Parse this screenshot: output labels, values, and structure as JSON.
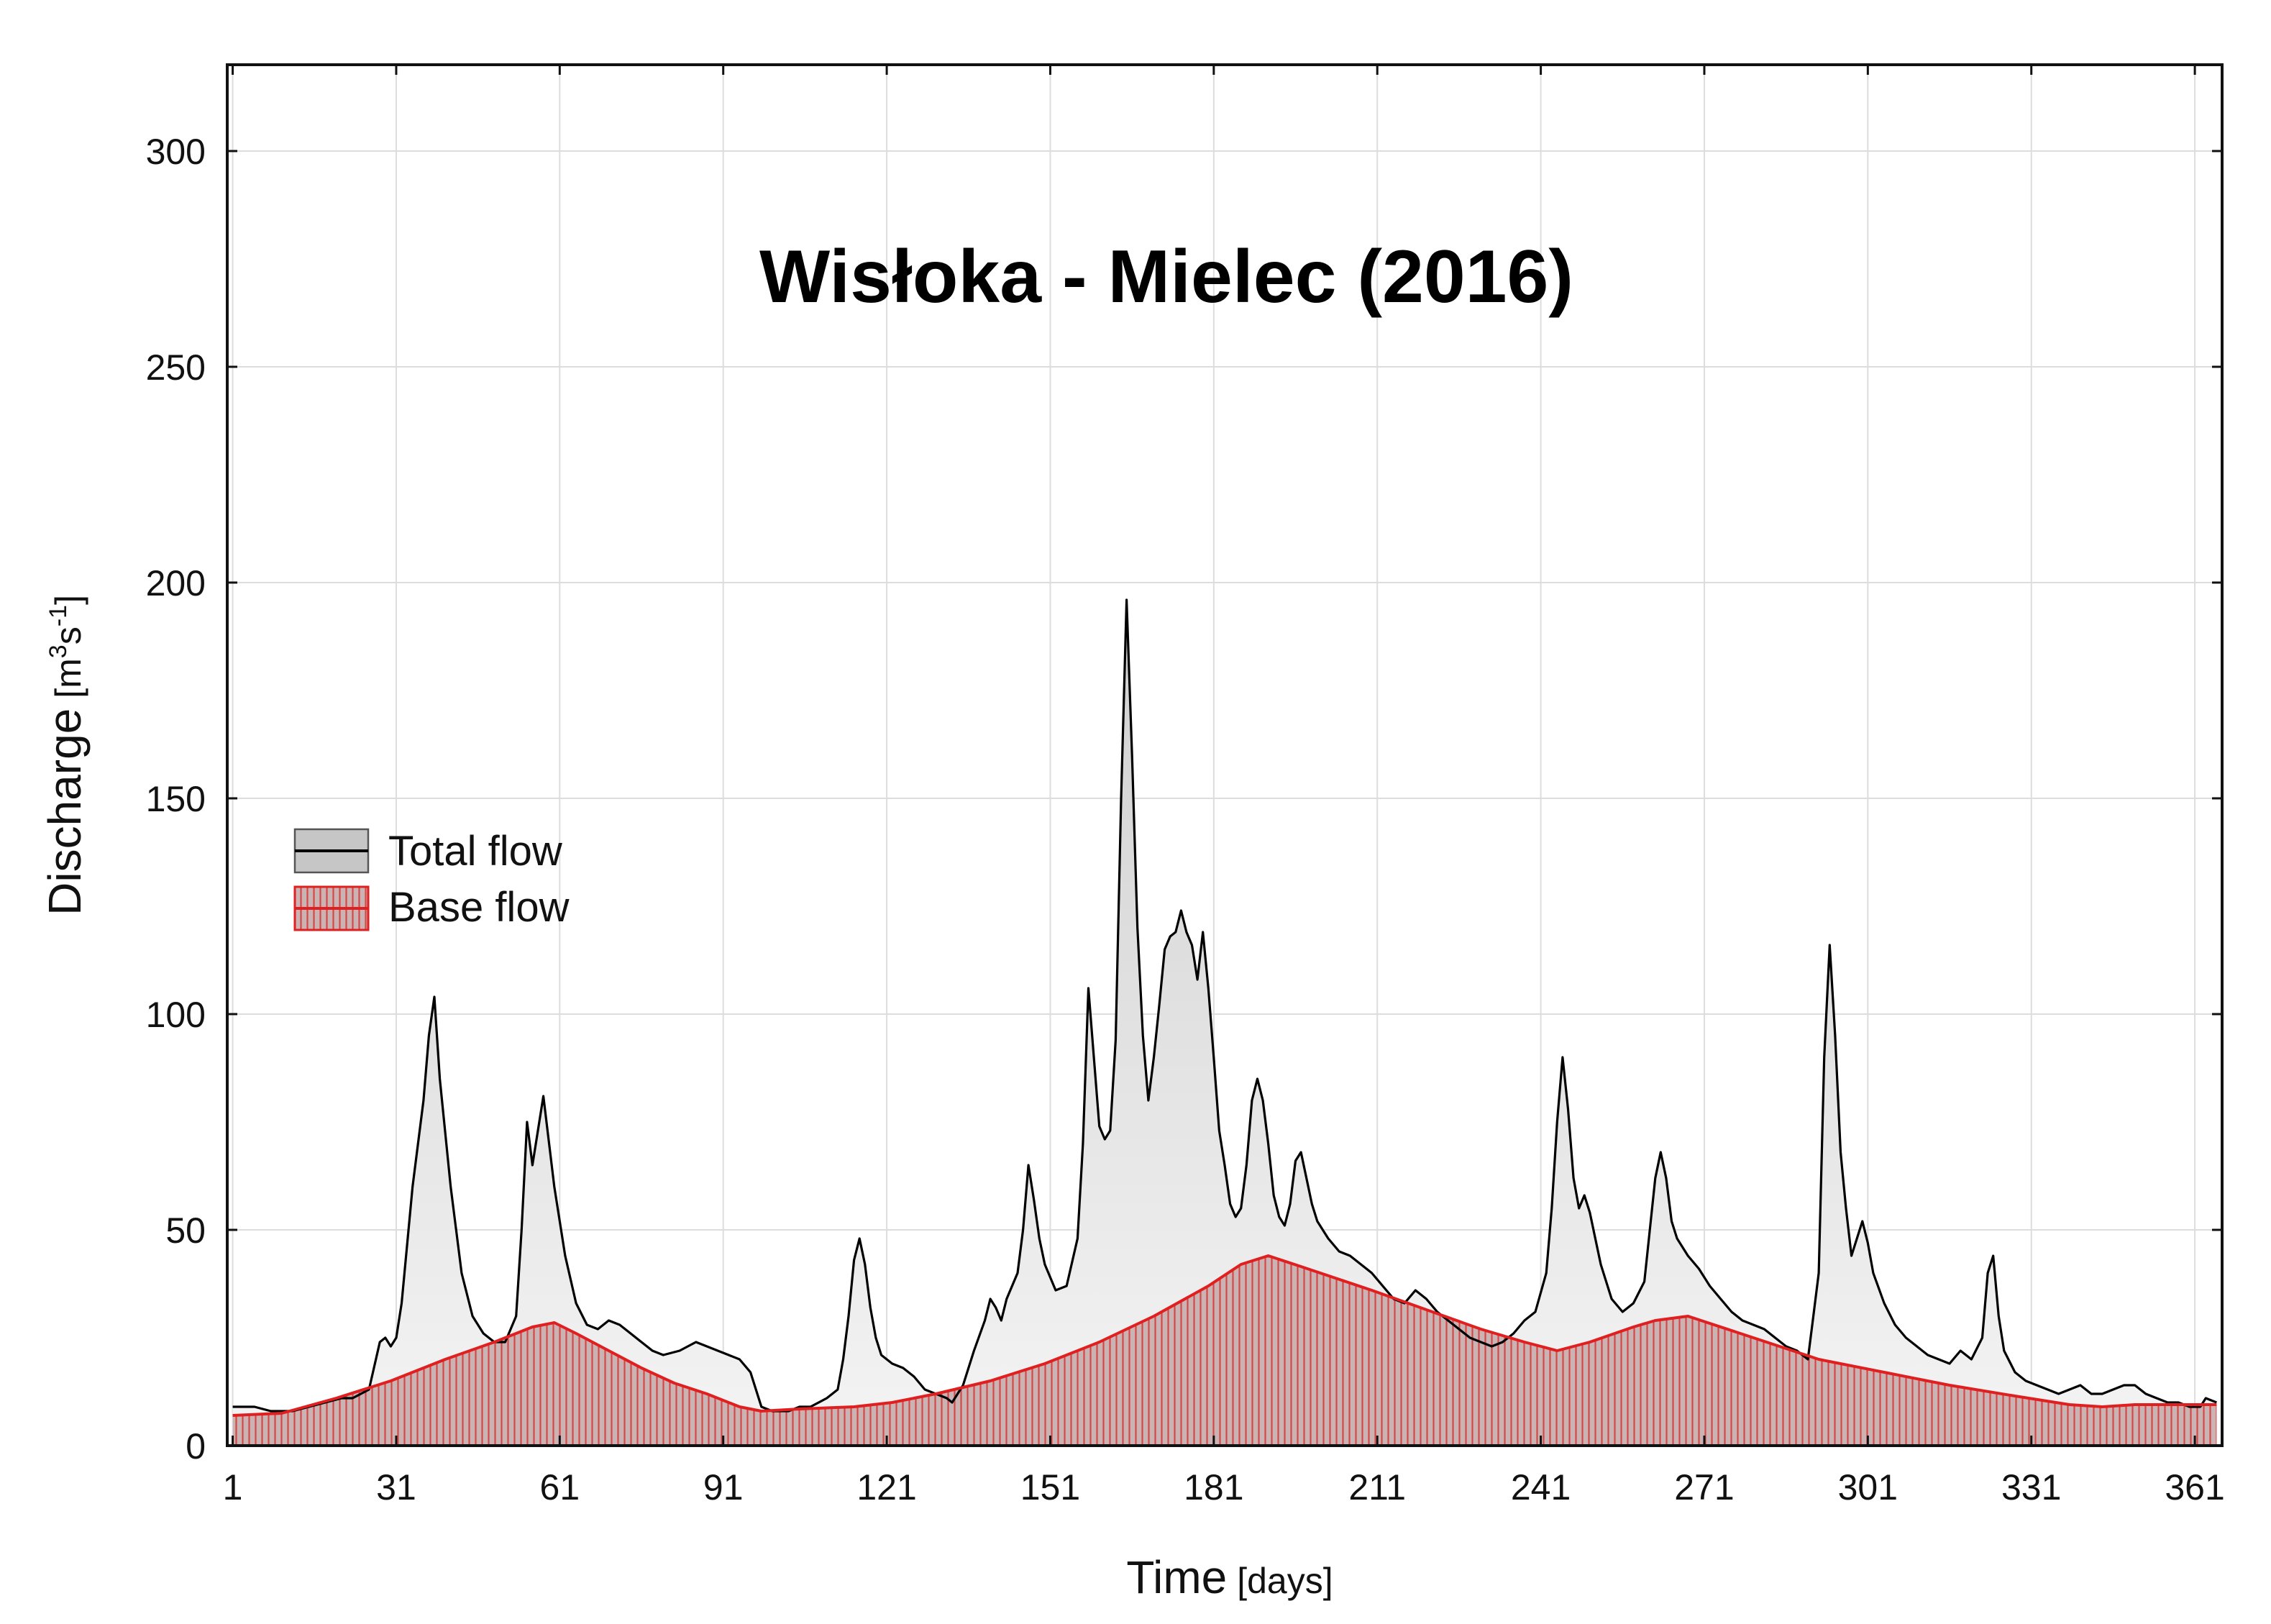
{
  "chart_data": {
    "type": "area",
    "title": "Wisłoka - Mielec (2016)",
    "xlabel": "Time",
    "xlabel_unit": "[days]",
    "ylabel": "Discharge",
    "ylabel_unit_open": "[m",
    "ylabel_unit_sup1": "3",
    "ylabel_unit_mid": "s",
    "ylabel_unit_sup2": "-1",
    "ylabel_unit_close": "]",
    "xlim": [
      0,
      366
    ],
    "ylim": [
      0,
      320
    ],
    "x_ticks": [
      1,
      31,
      61,
      91,
      121,
      151,
      181,
      211,
      241,
      271,
      301,
      331,
      361
    ],
    "y_ticks": [
      0,
      50,
      100,
      150,
      200,
      250,
      300
    ],
    "grid": true,
    "legend_position": "middle-left",
    "colors": {
      "total_fill": "#e6e6e6",
      "total_line": "#000000",
      "base_fill": "#c9b4b4",
      "base_hatch": "#d44a4a",
      "base_line": "#e02020",
      "grid": "#dddddd"
    },
    "series": [
      {
        "name": "Total flow",
        "style": "gray-fill-black-line",
        "points": [
          [
            1,
            9
          ],
          [
            5,
            9
          ],
          [
            8,
            8
          ],
          [
            10,
            8
          ],
          [
            12,
            8
          ],
          [
            15,
            9
          ],
          [
            18,
            10
          ],
          [
            21,
            11
          ],
          [
            23,
            11
          ],
          [
            26,
            13
          ],
          [
            28,
            24
          ],
          [
            29,
            25
          ],
          [
            30,
            23
          ],
          [
            31,
            25
          ],
          [
            32,
            33
          ],
          [
            34,
            60
          ],
          [
            36,
            80
          ],
          [
            37,
            95
          ],
          [
            38,
            104
          ],
          [
            39,
            85
          ],
          [
            41,
            60
          ],
          [
            43,
            40
          ],
          [
            45,
            30
          ],
          [
            47,
            26
          ],
          [
            49,
            24
          ],
          [
            51,
            24
          ],
          [
            53,
            30
          ],
          [
            54,
            50
          ],
          [
            55,
            75
          ],
          [
            56,
            65
          ],
          [
            57,
            73
          ],
          [
            58,
            81
          ],
          [
            60,
            60
          ],
          [
            62,
            44
          ],
          [
            64,
            33
          ],
          [
            66,
            28
          ],
          [
            68,
            27
          ],
          [
            70,
            29
          ],
          [
            72,
            28
          ],
          [
            74,
            26
          ],
          [
            76,
            24
          ],
          [
            78,
            22
          ],
          [
            80,
            21
          ],
          [
            83,
            22
          ],
          [
            86,
            24
          ],
          [
            88,
            23
          ],
          [
            90,
            22
          ],
          [
            92,
            21
          ],
          [
            94,
            20
          ],
          [
            96,
            17
          ],
          [
            98,
            9
          ],
          [
            100,
            8
          ],
          [
            103,
            8
          ],
          [
            105,
            9
          ],
          [
            107,
            9
          ],
          [
            110,
            11
          ],
          [
            112,
            13
          ],
          [
            113,
            20
          ],
          [
            114,
            30
          ],
          [
            115,
            43
          ],
          [
            116,
            48
          ],
          [
            117,
            42
          ],
          [
            118,
            32
          ],
          [
            119,
            25
          ],
          [
            120,
            21
          ],
          [
            122,
            19
          ],
          [
            124,
            18
          ],
          [
            126,
            16
          ],
          [
            128,
            13
          ],
          [
            130,
            12
          ],
          [
            132,
            11
          ],
          [
            133,
            10
          ],
          [
            135,
            14
          ],
          [
            137,
            22
          ],
          [
            139,
            29
          ],
          [
            140,
            34
          ],
          [
            141,
            32
          ],
          [
            142,
            29
          ],
          [
            143,
            34
          ],
          [
            145,
            40
          ],
          [
            146,
            50
          ],
          [
            147,
            65
          ],
          [
            148,
            57
          ],
          [
            149,
            48
          ],
          [
            150,
            42
          ],
          [
            152,
            36
          ],
          [
            154,
            37
          ],
          [
            156,
            48
          ],
          [
            157,
            70
          ],
          [
            158,
            106
          ],
          [
            159,
            90
          ],
          [
            160,
            74
          ],
          [
            161,
            71
          ],
          [
            162,
            73
          ],
          [
            163,
            94
          ],
          [
            164,
            150
          ],
          [
            165,
            196
          ],
          [
            166,
            160
          ],
          [
            167,
            120
          ],
          [
            168,
            95
          ],
          [
            169,
            80
          ],
          [
            170,
            90
          ],
          [
            171,
            102
          ],
          [
            172,
            115
          ],
          [
            173,
            118
          ],
          [
            174,
            119
          ],
          [
            175,
            124
          ],
          [
            176,
            119
          ],
          [
            177,
            116
          ],
          [
            178,
            108
          ],
          [
            179,
            119
          ],
          [
            180,
            106
          ],
          [
            181,
            90
          ],
          [
            182,
            73
          ],
          [
            183,
            65
          ],
          [
            184,
            56
          ],
          [
            185,
            53
          ],
          [
            186,
            55
          ],
          [
            187,
            65
          ],
          [
            188,
            80
          ],
          [
            189,
            85
          ],
          [
            190,
            80
          ],
          [
            191,
            70
          ],
          [
            192,
            58
          ],
          [
            193,
            53
          ],
          [
            194,
            51
          ],
          [
            195,
            56
          ],
          [
            196,
            66
          ],
          [
            197,
            68
          ],
          [
            198,
            62
          ],
          [
            199,
            56
          ],
          [
            200,
            52
          ],
          [
            202,
            48
          ],
          [
            204,
            45
          ],
          [
            206,
            44
          ],
          [
            208,
            42
          ],
          [
            210,
            40
          ],
          [
            212,
            37
          ],
          [
            214,
            34
          ],
          [
            216,
            33
          ],
          [
            218,
            36
          ],
          [
            220,
            34
          ],
          [
            222,
            31
          ],
          [
            224,
            29
          ],
          [
            226,
            27
          ],
          [
            228,
            25
          ],
          [
            230,
            24
          ],
          [
            232,
            23
          ],
          [
            234,
            24
          ],
          [
            236,
            26
          ],
          [
            238,
            29
          ],
          [
            240,
            31
          ],
          [
            242,
            40
          ],
          [
            243,
            55
          ],
          [
            244,
            75
          ],
          [
            245,
            90
          ],
          [
            246,
            78
          ],
          [
            247,
            62
          ],
          [
            248,
            55
          ],
          [
            249,
            58
          ],
          [
            250,
            54
          ],
          [
            252,
            42
          ],
          [
            254,
            34
          ],
          [
            256,
            31
          ],
          [
            258,
            33
          ],
          [
            260,
            38
          ],
          [
            261,
            50
          ],
          [
            262,
            62
          ],
          [
            263,
            68
          ],
          [
            264,
            62
          ],
          [
            265,
            52
          ],
          [
            266,
            48
          ],
          [
            268,
            44
          ],
          [
            270,
            41
          ],
          [
            272,
            37
          ],
          [
            274,
            34
          ],
          [
            276,
            31
          ],
          [
            278,
            29
          ],
          [
            280,
            28
          ],
          [
            282,
            27
          ],
          [
            284,
            25
          ],
          [
            286,
            23
          ],
          [
            288,
            22
          ],
          [
            290,
            20
          ],
          [
            291,
            30
          ],
          [
            292,
            40
          ],
          [
            293,
            90
          ],
          [
            294,
            116
          ],
          [
            295,
            95
          ],
          [
            296,
            68
          ],
          [
            297,
            55
          ],
          [
            298,
            44
          ],
          [
            299,
            48
          ],
          [
            300,
            52
          ],
          [
            301,
            47
          ],
          [
            302,
            40
          ],
          [
            304,
            33
          ],
          [
            306,
            28
          ],
          [
            308,
            25
          ],
          [
            310,
            23
          ],
          [
            312,
            21
          ],
          [
            314,
            20
          ],
          [
            316,
            19
          ],
          [
            318,
            22
          ],
          [
            320,
            20
          ],
          [
            322,
            25
          ],
          [
            323,
            40
          ],
          [
            324,
            44
          ],
          [
            325,
            30
          ],
          [
            326,
            22
          ],
          [
            328,
            17
          ],
          [
            330,
            15
          ],
          [
            332,
            14
          ],
          [
            334,
            13
          ],
          [
            336,
            12
          ],
          [
            338,
            13
          ],
          [
            340,
            14
          ],
          [
            342,
            12
          ],
          [
            344,
            12
          ],
          [
            346,
            13
          ],
          [
            348,
            14
          ],
          [
            350,
            14
          ],
          [
            352,
            12
          ],
          [
            354,
            11
          ],
          [
            356,
            10
          ],
          [
            358,
            10
          ],
          [
            360,
            9
          ],
          [
            362,
            9
          ],
          [
            363,
            11
          ],
          [
            365,
            10
          ]
        ]
      },
      {
        "name": "Base flow",
        "style": "red-hatched-fill-red-line",
        "points": [
          [
            1,
            7
          ],
          [
            10,
            7.5
          ],
          [
            20,
            11
          ],
          [
            30,
            15
          ],
          [
            40,
            20
          ],
          [
            49,
            24
          ],
          [
            56,
            27.5
          ],
          [
            60,
            28.5
          ],
          [
            64,
            26
          ],
          [
            70,
            22
          ],
          [
            76,
            18
          ],
          [
            82,
            14.5
          ],
          [
            88,
            12
          ],
          [
            94,
            9
          ],
          [
            98,
            8
          ],
          [
            105,
            8.5
          ],
          [
            115,
            9
          ],
          [
            122,
            10
          ],
          [
            130,
            12
          ],
          [
            140,
            15
          ],
          [
            150,
            19
          ],
          [
            160,
            24
          ],
          [
            170,
            30
          ],
          [
            180,
            37
          ],
          [
            186,
            42
          ],
          [
            191,
            44
          ],
          [
            197,
            41.5
          ],
          [
            210,
            36
          ],
          [
            220,
            31.5
          ],
          [
            230,
            27
          ],
          [
            238,
            24
          ],
          [
            244,
            22
          ],
          [
            250,
            24
          ],
          [
            258,
            27.5
          ],
          [
            262,
            29
          ],
          [
            268,
            30
          ],
          [
            280,
            25
          ],
          [
            292,
            20
          ],
          [
            304,
            17
          ],
          [
            316,
            14
          ],
          [
            328,
            11.5
          ],
          [
            338,
            9.5
          ],
          [
            344,
            9
          ],
          [
            350,
            9.5
          ],
          [
            358,
            9.5
          ],
          [
            362,
            9.5
          ],
          [
            365,
            9.5
          ]
        ]
      }
    ]
  }
}
